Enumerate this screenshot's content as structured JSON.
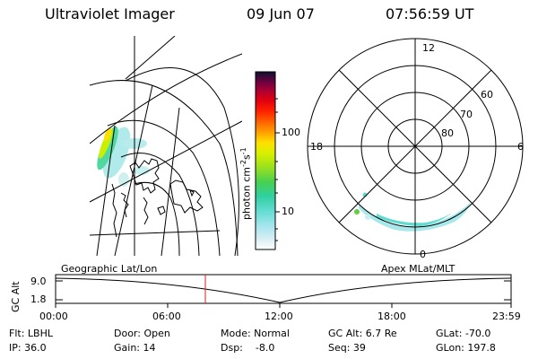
{
  "header": {
    "title": "Ultraviolet Imager",
    "date": "09 Jun 07",
    "time": "07:56:59 UT"
  },
  "colorbar": {
    "unit_label": "photon cm",
    "unit_exp1": "-2",
    "unit_s": "s",
    "unit_exp2": "-1",
    "tick_100": "100",
    "tick_10": "10",
    "colors": [
      "#ffffff",
      "#d0e8f0",
      "#a0e0e8",
      "#60e0d0",
      "#30d0a0",
      "#40d050",
      "#90e020",
      "#d8f000",
      "#ffe000",
      "#ffa000",
      "#ff6000",
      "#ff2000",
      "#e00010",
      "#b00030",
      "#700040",
      "#300040",
      "#101030"
    ]
  },
  "polar": {
    "label_top": "12",
    "label_left": "18",
    "label_right": "6",
    "label_bottom": "0",
    "ring_60": "60",
    "ring_70": "70",
    "ring_80": "80"
  },
  "timeline": {
    "left_label": "Geographic Lat/Lon",
    "right_label": "Apex MLat/MLT",
    "y_axis_label": "GC Alt",
    "y_top": "9.0",
    "y_bottom": "1.8",
    "x_ticks": [
      "00:00",
      "06:00",
      "12:00",
      "18:00",
      "23:59"
    ],
    "marker_color": "#d02020"
  },
  "info": {
    "flt": "Flt: LBHL",
    "ip": "IP: 36.0",
    "door": "Door: Open",
    "gain": "Gain: 14",
    "mode": "Mode: Normal",
    "dsp": "Dsp:    -8.0",
    "gc_alt": "GC Alt: 6.7 Re",
    "seq": "Seq: 39",
    "glat": "GLat: -70.0",
    "glon": "GLon: 197.8"
  }
}
